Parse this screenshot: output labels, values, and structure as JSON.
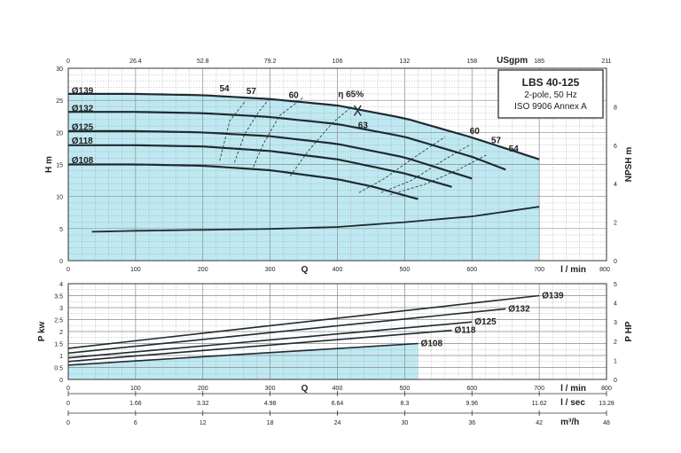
{
  "title_box": {
    "model": "LBS 40-125",
    "line2": "2-pole, 50 Hz",
    "line3": "ISO 9906 Annex A"
  },
  "colors": {
    "fill": "#bfe9f2",
    "curve": "#1f2a30",
    "grid": "#8a8a8a",
    "axis": "#333333"
  },
  "chart_data": [
    {
      "type": "line",
      "title": "LBS 40-125",
      "xlabel": "Q",
      "x_unit_label": "l / min",
      "xlim": [
        0,
        800
      ],
      "x_ticks": [
        "0",
        "100",
        "200",
        "300",
        "400",
        "500",
        "600",
        "700",
        "800"
      ],
      "top_axis_unit": "USgpm",
      "top_axis_ticks": [
        "0",
        "26.4",
        "52.8",
        "79.2",
        "106",
        "132",
        "158",
        "185",
        "211"
      ],
      "ylabel": "H m",
      "ylim": [
        0,
        30
      ],
      "y_ticks": [
        "0",
        "5",
        "10",
        "15",
        "20",
        "25",
        "30"
      ],
      "y2label": "NPSH m",
      "y2lim": [
        0,
        10
      ],
      "y2_ticks": [
        "0",
        "2",
        "4",
        "6",
        "8"
      ],
      "series": [
        {
          "name": "Ø139",
          "x": [
            0,
            100,
            200,
            300,
            400,
            500,
            600,
            700
          ],
          "y": [
            26,
            26,
            25.8,
            25.2,
            24.2,
            22.2,
            19.2,
            15.8
          ]
        },
        {
          "name": "Ø132",
          "x": [
            0,
            100,
            200,
            300,
            400,
            500,
            600,
            650
          ],
          "y": [
            23.2,
            23.2,
            23.0,
            22.4,
            21.3,
            19.3,
            16.2,
            14.2
          ]
        },
        {
          "name": "Ø125",
          "x": [
            0,
            100,
            200,
            300,
            400,
            500,
            600
          ],
          "y": [
            20.2,
            20.2,
            20.0,
            19.4,
            18.2,
            16.1,
            12.8
          ]
        },
        {
          "name": "Ø118",
          "x": [
            0,
            100,
            200,
            300,
            400,
            500,
            570
          ],
          "y": [
            18.0,
            18.0,
            17.8,
            17.1,
            15.8,
            13.6,
            11.5
          ]
        },
        {
          "name": "Ø108",
          "x": [
            0,
            100,
            200,
            300,
            400,
            450,
            520
          ],
          "y": [
            15.0,
            15.0,
            14.8,
            14.1,
            12.7,
            11.6,
            9.6
          ]
        }
      ],
      "npsh": {
        "x": [
          35,
          100,
          200,
          300,
          400,
          500,
          600,
          700
        ],
        "y": [
          1.5,
          1.55,
          1.6,
          1.65,
          1.75,
          2.0,
          2.3,
          2.8
        ]
      },
      "efficiency_labels": [
        "54",
        "57",
        "60",
        "63",
        "η 65%",
        "60",
        "57",
        "54"
      ]
    },
    {
      "type": "line",
      "xlabel": "Q",
      "x_unit_label": "l / min",
      "xlim": [
        0,
        800
      ],
      "x_ticks": [
        "0",
        "100",
        "200",
        "300",
        "400",
        "500",
        "600",
        "700",
        "800"
      ],
      "ylabel": "P kw",
      "ylim": [
        0,
        4
      ],
      "y_ticks": [
        "0",
        "0.5",
        "1",
        "1.5",
        "2",
        "2.5",
        "3",
        "3.5",
        "4"
      ],
      "y2label": "P HP",
      "y2lim": [
        0,
        5
      ],
      "y2_ticks": [
        "0",
        "1",
        "2",
        "3",
        "4",
        "5"
      ],
      "series": [
        {
          "name": "Ø139",
          "x": [
            0,
            700
          ],
          "y": [
            1.3,
            3.5
          ]
        },
        {
          "name": "Ø132",
          "x": [
            0,
            650
          ],
          "y": [
            1.1,
            2.95
          ]
        },
        {
          "name": "Ø125",
          "x": [
            0,
            600
          ],
          "y": [
            0.9,
            2.4
          ]
        },
        {
          "name": "Ø118",
          "x": [
            0,
            570
          ],
          "y": [
            0.75,
            2.05
          ]
        },
        {
          "name": "Ø108",
          "x": [
            0,
            520
          ],
          "y": [
            0.6,
            1.5
          ]
        }
      ]
    }
  ],
  "bottom_axes": [
    {
      "unit": "l / sec",
      "ticks": [
        "0",
        "1.66",
        "3.32",
        "4.98",
        "6.64",
        "8.3",
        "9.96",
        "11.62",
        "13.28"
      ]
    },
    {
      "unit": "m³/h",
      "ticks": [
        "0",
        "6",
        "12",
        "18",
        "24",
        "30",
        "36",
        "42",
        "48"
      ]
    }
  ]
}
